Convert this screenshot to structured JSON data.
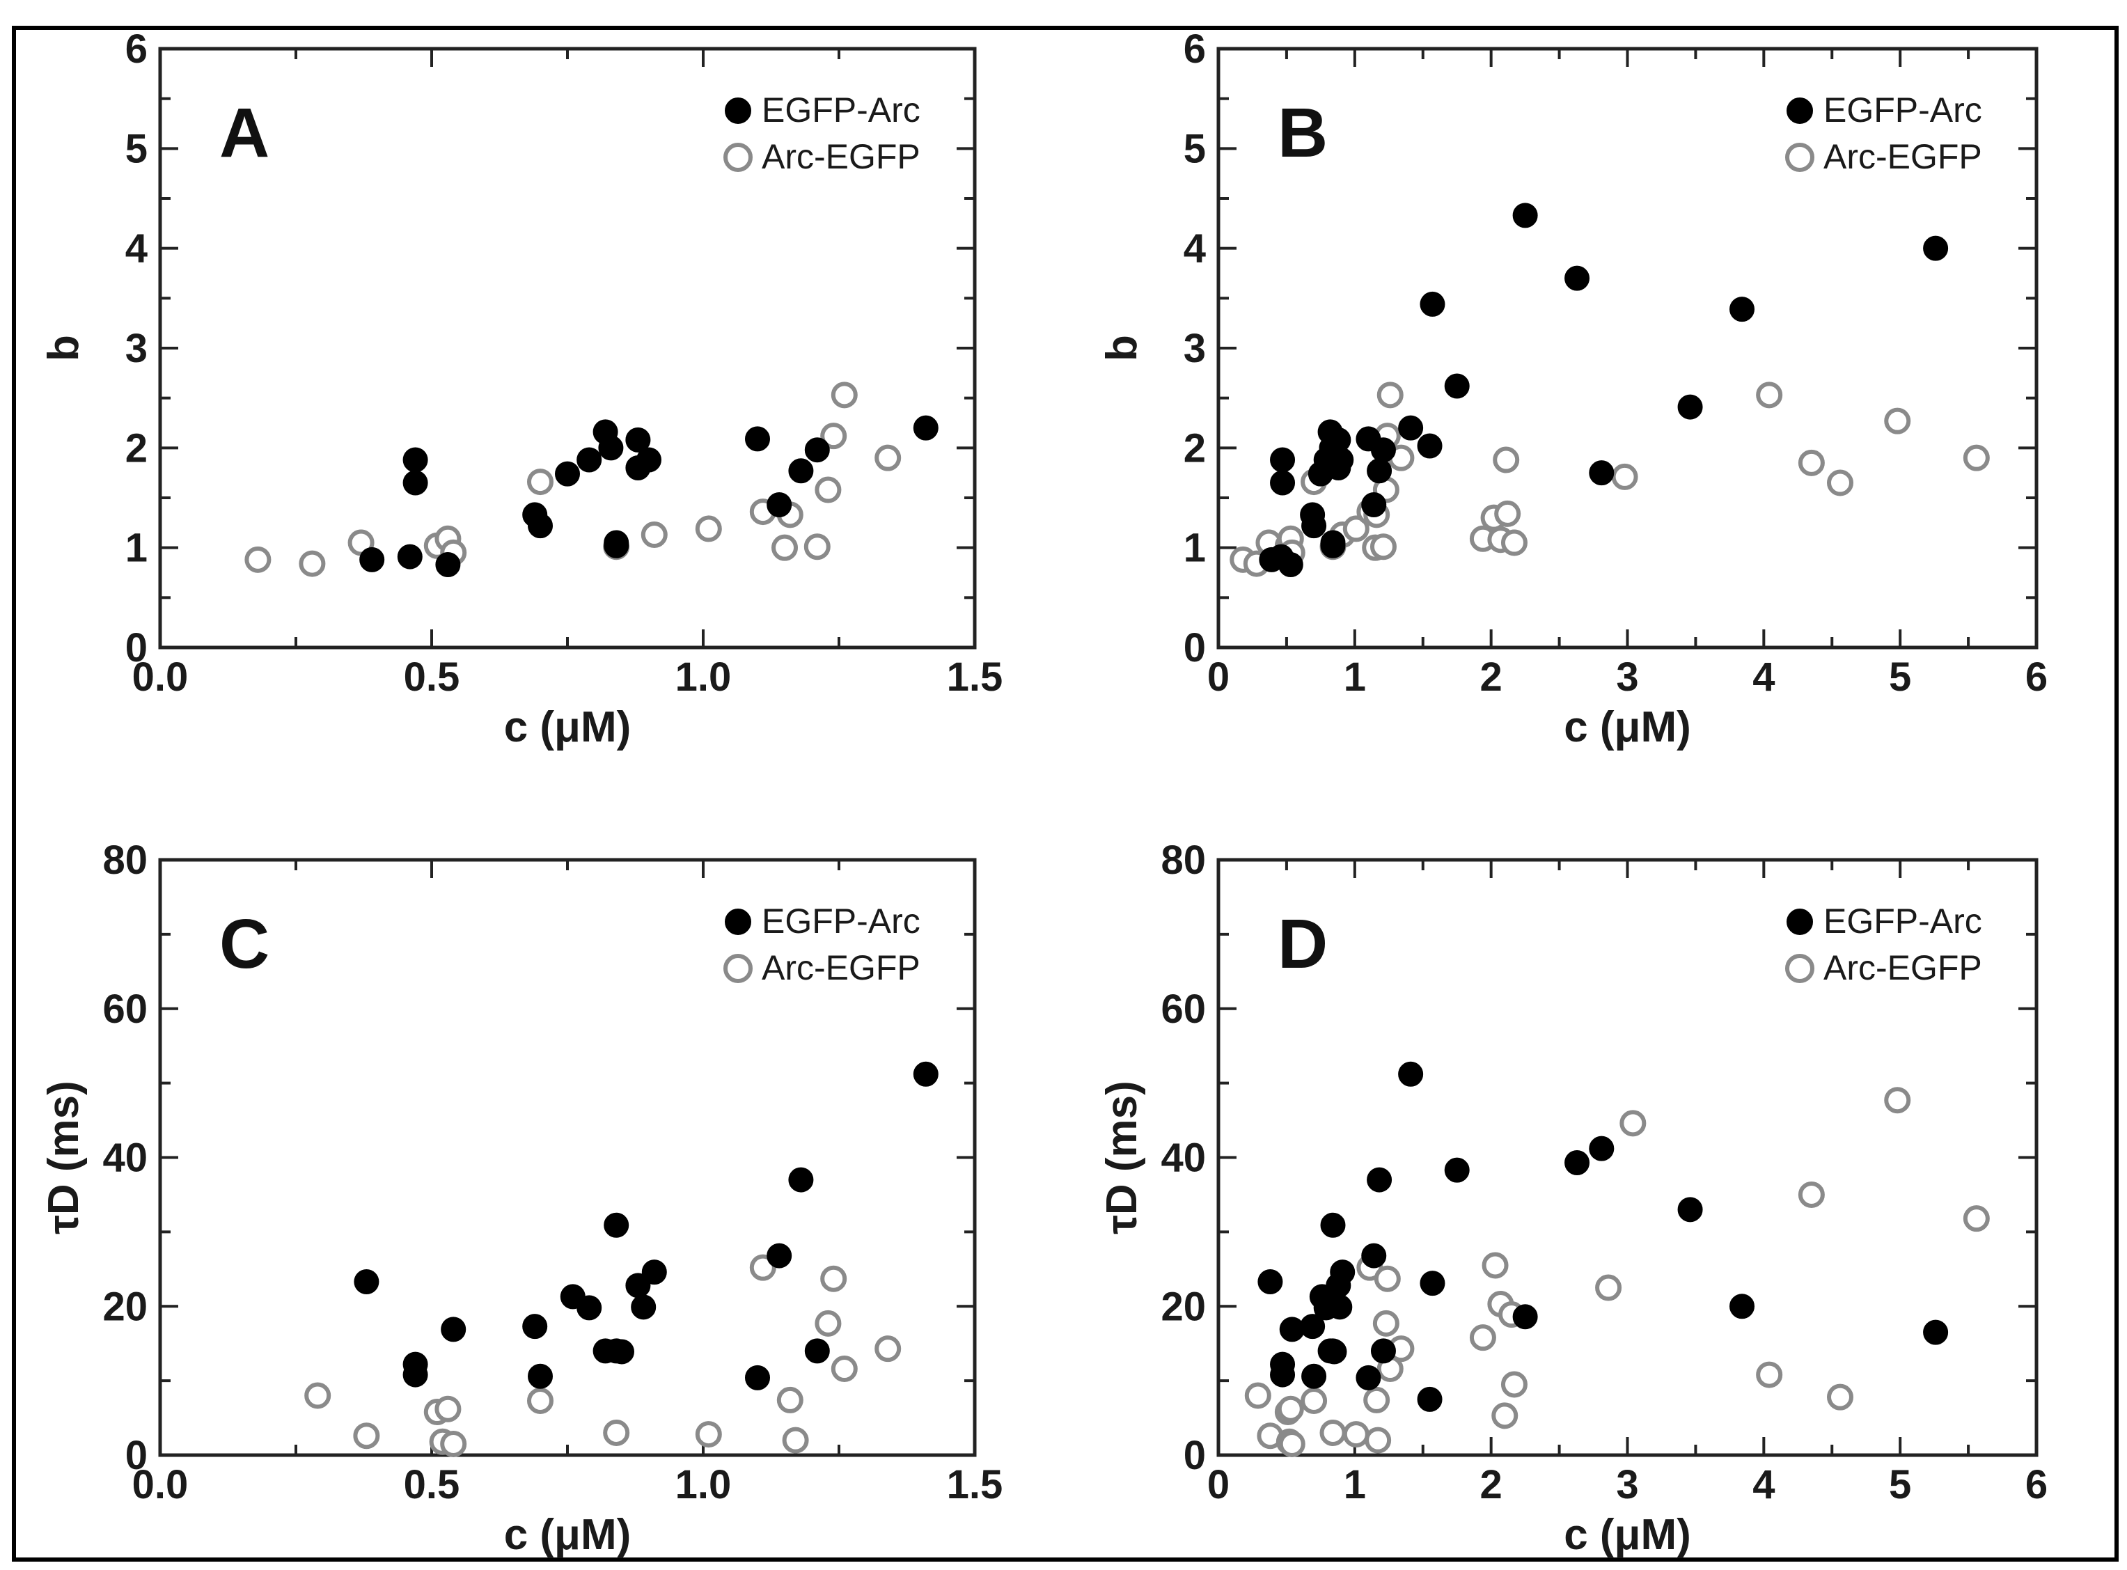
{
  "chart_data": [
    {
      "type": "scatter",
      "panel": "A",
      "xlabel": "c (μM)",
      "ylabel": "b",
      "xlim": [
        0,
        1.5
      ],
      "ylim": [
        0,
        6
      ],
      "xticks": [
        0,
        0.5,
        1.0,
        1.5
      ],
      "xtick_labels": [
        "0.0",
        "0.5",
        "1.0",
        "1.5"
      ],
      "yticks": [
        0,
        1,
        2,
        3,
        4,
        5,
        6
      ],
      "ytick_labels": [
        "0",
        "1",
        "2",
        "3",
        "4",
        "5",
        "6"
      ],
      "legend": "top-right",
      "series": [
        {
          "name": "EGFP-Arc",
          "marker": "filled",
          "x": [
            0.39,
            0.46,
            0.47,
            0.47,
            0.53,
            0.69,
            0.7,
            0.75,
            0.79,
            0.82,
            0.83,
            0.84,
            0.84,
            0.88,
            0.88,
            0.9,
            1.1,
            1.14,
            1.18,
            1.21,
            1.41
          ],
          "y": [
            0.88,
            0.91,
            1.65,
            1.88,
            0.83,
            1.33,
            1.22,
            1.74,
            1.88,
            2.16,
            2.0,
            1.05,
            1.02,
            2.08,
            1.8,
            1.88,
            2.09,
            1.43,
            1.77,
            1.98,
            2.2
          ]
        },
        {
          "name": "Arc-EGFP",
          "marker": "open",
          "x": [
            0.18,
            0.28,
            0.37,
            0.51,
            0.53,
            0.54,
            0.7,
            0.84,
            0.91,
            1.01,
            1.11,
            1.15,
            1.16,
            1.21,
            1.23,
            1.24,
            1.26,
            1.34
          ],
          "y": [
            0.88,
            0.84,
            1.05,
            1.02,
            1.09,
            0.95,
            1.66,
            1.01,
            1.13,
            1.19,
            1.36,
            1.0,
            1.33,
            1.01,
            1.58,
            2.12,
            2.53,
            1.9
          ]
        }
      ]
    },
    {
      "type": "scatter",
      "panel": "B",
      "xlabel": "c (μM)",
      "ylabel": "b",
      "xlim": [
        0,
        6
      ],
      "ylim": [
        0,
        6
      ],
      "xticks": [
        0,
        1,
        2,
        3,
        4,
        5,
        6
      ],
      "xtick_labels": [
        "0",
        "1",
        "2",
        "3",
        "4",
        "5",
        "6"
      ],
      "yticks": [
        0,
        1,
        2,
        3,
        4,
        5,
        6
      ],
      "ytick_labels": [
        "0",
        "1",
        "2",
        "3",
        "4",
        "5",
        "6"
      ],
      "legend": "top-right",
      "series": [
        {
          "name": "EGFP-Arc",
          "marker": "filled",
          "x": [
            0.39,
            0.46,
            0.47,
            0.47,
            0.53,
            0.69,
            0.7,
            0.75,
            0.79,
            0.82,
            0.83,
            0.84,
            0.84,
            0.88,
            0.88,
            0.9,
            1.1,
            1.14,
            1.18,
            1.21,
            1.41,
            1.55,
            1.57,
            1.75,
            2.25,
            2.63,
            2.81,
            3.46,
            3.84,
            5.26
          ],
          "y": [
            0.88,
            0.91,
            1.65,
            1.88,
            0.83,
            1.33,
            1.22,
            1.74,
            1.88,
            2.16,
            2.0,
            1.05,
            1.02,
            2.08,
            1.8,
            1.88,
            2.09,
            1.43,
            1.77,
            1.98,
            2.2,
            2.02,
            3.44,
            2.62,
            4.33,
            3.7,
            1.75,
            2.41,
            3.39,
            4.0
          ]
        },
        {
          "name": "Arc-EGFP",
          "marker": "open",
          "x": [
            0.18,
            0.28,
            0.37,
            0.51,
            0.53,
            0.54,
            0.7,
            0.84,
            0.91,
            1.01,
            1.11,
            1.15,
            1.16,
            1.21,
            1.23,
            1.24,
            1.26,
            1.34,
            1.94,
            2.02,
            2.07,
            2.11,
            2.12,
            2.17,
            2.98,
            4.04,
            4.35,
            4.56,
            4.98,
            5.56
          ],
          "y": [
            0.88,
            0.84,
            1.05,
            1.02,
            1.09,
            0.95,
            1.66,
            1.01,
            1.13,
            1.19,
            1.36,
            1.0,
            1.33,
            1.01,
            1.58,
            2.12,
            2.53,
            1.9,
            1.09,
            1.3,
            1.08,
            1.88,
            1.34,
            1.05,
            1.71,
            2.53,
            1.85,
            1.65,
            2.27,
            1.9
          ]
        }
      ]
    },
    {
      "type": "scatter",
      "panel": "C",
      "xlabel": "c (μM)",
      "ylabel": "τD (ms)",
      "xlim": [
        0,
        1.5
      ],
      "ylim": [
        0,
        80
      ],
      "xticks": [
        0,
        0.5,
        1.0,
        1.5
      ],
      "xtick_labels": [
        "0.0",
        "0.5",
        "1.0",
        "1.5"
      ],
      "yticks": [
        0,
        20,
        40,
        60,
        80
      ],
      "ytick_labels": [
        "0",
        "20",
        "40",
        "60",
        "80"
      ],
      "legend": "top-right",
      "series": [
        {
          "name": "EGFP-Arc",
          "marker": "filled",
          "x": [
            0.38,
            0.47,
            0.47,
            0.54,
            0.69,
            0.7,
            0.76,
            0.79,
            0.82,
            0.84,
            0.84,
            0.85,
            0.88,
            0.89,
            0.91,
            1.1,
            1.14,
            1.18,
            1.21,
            1.41
          ],
          "y": [
            23.3,
            10.8,
            12.2,
            16.9,
            17.3,
            10.6,
            21.3,
            19.8,
            14.0,
            30.9,
            14.0,
            13.9,
            22.8,
            19.9,
            24.6,
            10.4,
            26.8,
            37.0,
            14.0,
            51.2
          ]
        },
        {
          "name": "Arc-EGFP",
          "marker": "open",
          "x": [
            0.29,
            0.38,
            0.51,
            0.52,
            0.53,
            0.54,
            0.7,
            0.84,
            1.01,
            1.11,
            1.16,
            1.17,
            1.23,
            1.24,
            1.26,
            1.34
          ],
          "y": [
            8.0,
            2.6,
            5.8,
            1.8,
            6.2,
            1.5,
            7.3,
            3.0,
            2.8,
            25.2,
            7.4,
            2.0,
            17.7,
            23.7,
            11.6,
            14.3
          ]
        }
      ]
    },
    {
      "type": "scatter",
      "panel": "D",
      "xlabel": "c (μM)",
      "ylabel": "τD (ms)",
      "xlim": [
        0,
        6
      ],
      "ylim": [
        0,
        80
      ],
      "xticks": [
        0,
        1,
        2,
        3,
        4,
        5,
        6
      ],
      "xtick_labels": [
        "0",
        "1",
        "2",
        "3",
        "4",
        "5",
        "6"
      ],
      "yticks": [
        0,
        20,
        40,
        60,
        80
      ],
      "ytick_labels": [
        "0",
        "20",
        "40",
        "60",
        "80"
      ],
      "legend": "top-right",
      "series": [
        {
          "name": "EGFP-Arc",
          "marker": "filled",
          "x": [
            0.38,
            0.47,
            0.47,
            0.54,
            0.69,
            0.7,
            0.76,
            0.79,
            0.82,
            0.84,
            0.84,
            0.85,
            0.88,
            0.89,
            0.91,
            1.1,
            1.14,
            1.18,
            1.21,
            1.41,
            1.55,
            1.57,
            1.75,
            2.25,
            2.63,
            2.81,
            3.46,
            3.84,
            5.26
          ],
          "y": [
            23.3,
            10.8,
            12.2,
            16.9,
            17.3,
            10.6,
            21.3,
            19.8,
            14.0,
            30.9,
            14.0,
            13.9,
            22.8,
            19.9,
            24.6,
            10.4,
            26.8,
            37.0,
            14.0,
            51.2,
            7.5,
            23.1,
            38.3,
            18.6,
            39.3,
            41.2,
            33.0,
            20.0,
            16.5
          ]
        },
        {
          "name": "Arc-EGFP",
          "marker": "open",
          "x": [
            0.29,
            0.38,
            0.51,
            0.52,
            0.53,
            0.54,
            0.7,
            0.84,
            1.01,
            1.11,
            1.16,
            1.17,
            1.23,
            1.24,
            1.26,
            1.34,
            1.94,
            2.03,
            2.07,
            2.1,
            2.15,
            2.17,
            2.86,
            3.04,
            4.04,
            4.35,
            4.56,
            4.98,
            5.56
          ],
          "y": [
            8.0,
            2.6,
            5.8,
            1.8,
            6.2,
            1.5,
            7.3,
            3.0,
            2.8,
            25.2,
            7.4,
            2.0,
            17.7,
            23.7,
            11.6,
            14.3,
            15.8,
            25.5,
            20.3,
            5.3,
            18.9,
            9.5,
            22.5,
            44.6,
            10.8,
            35.0,
            7.8,
            47.7,
            31.8
          ]
        }
      ]
    }
  ]
}
